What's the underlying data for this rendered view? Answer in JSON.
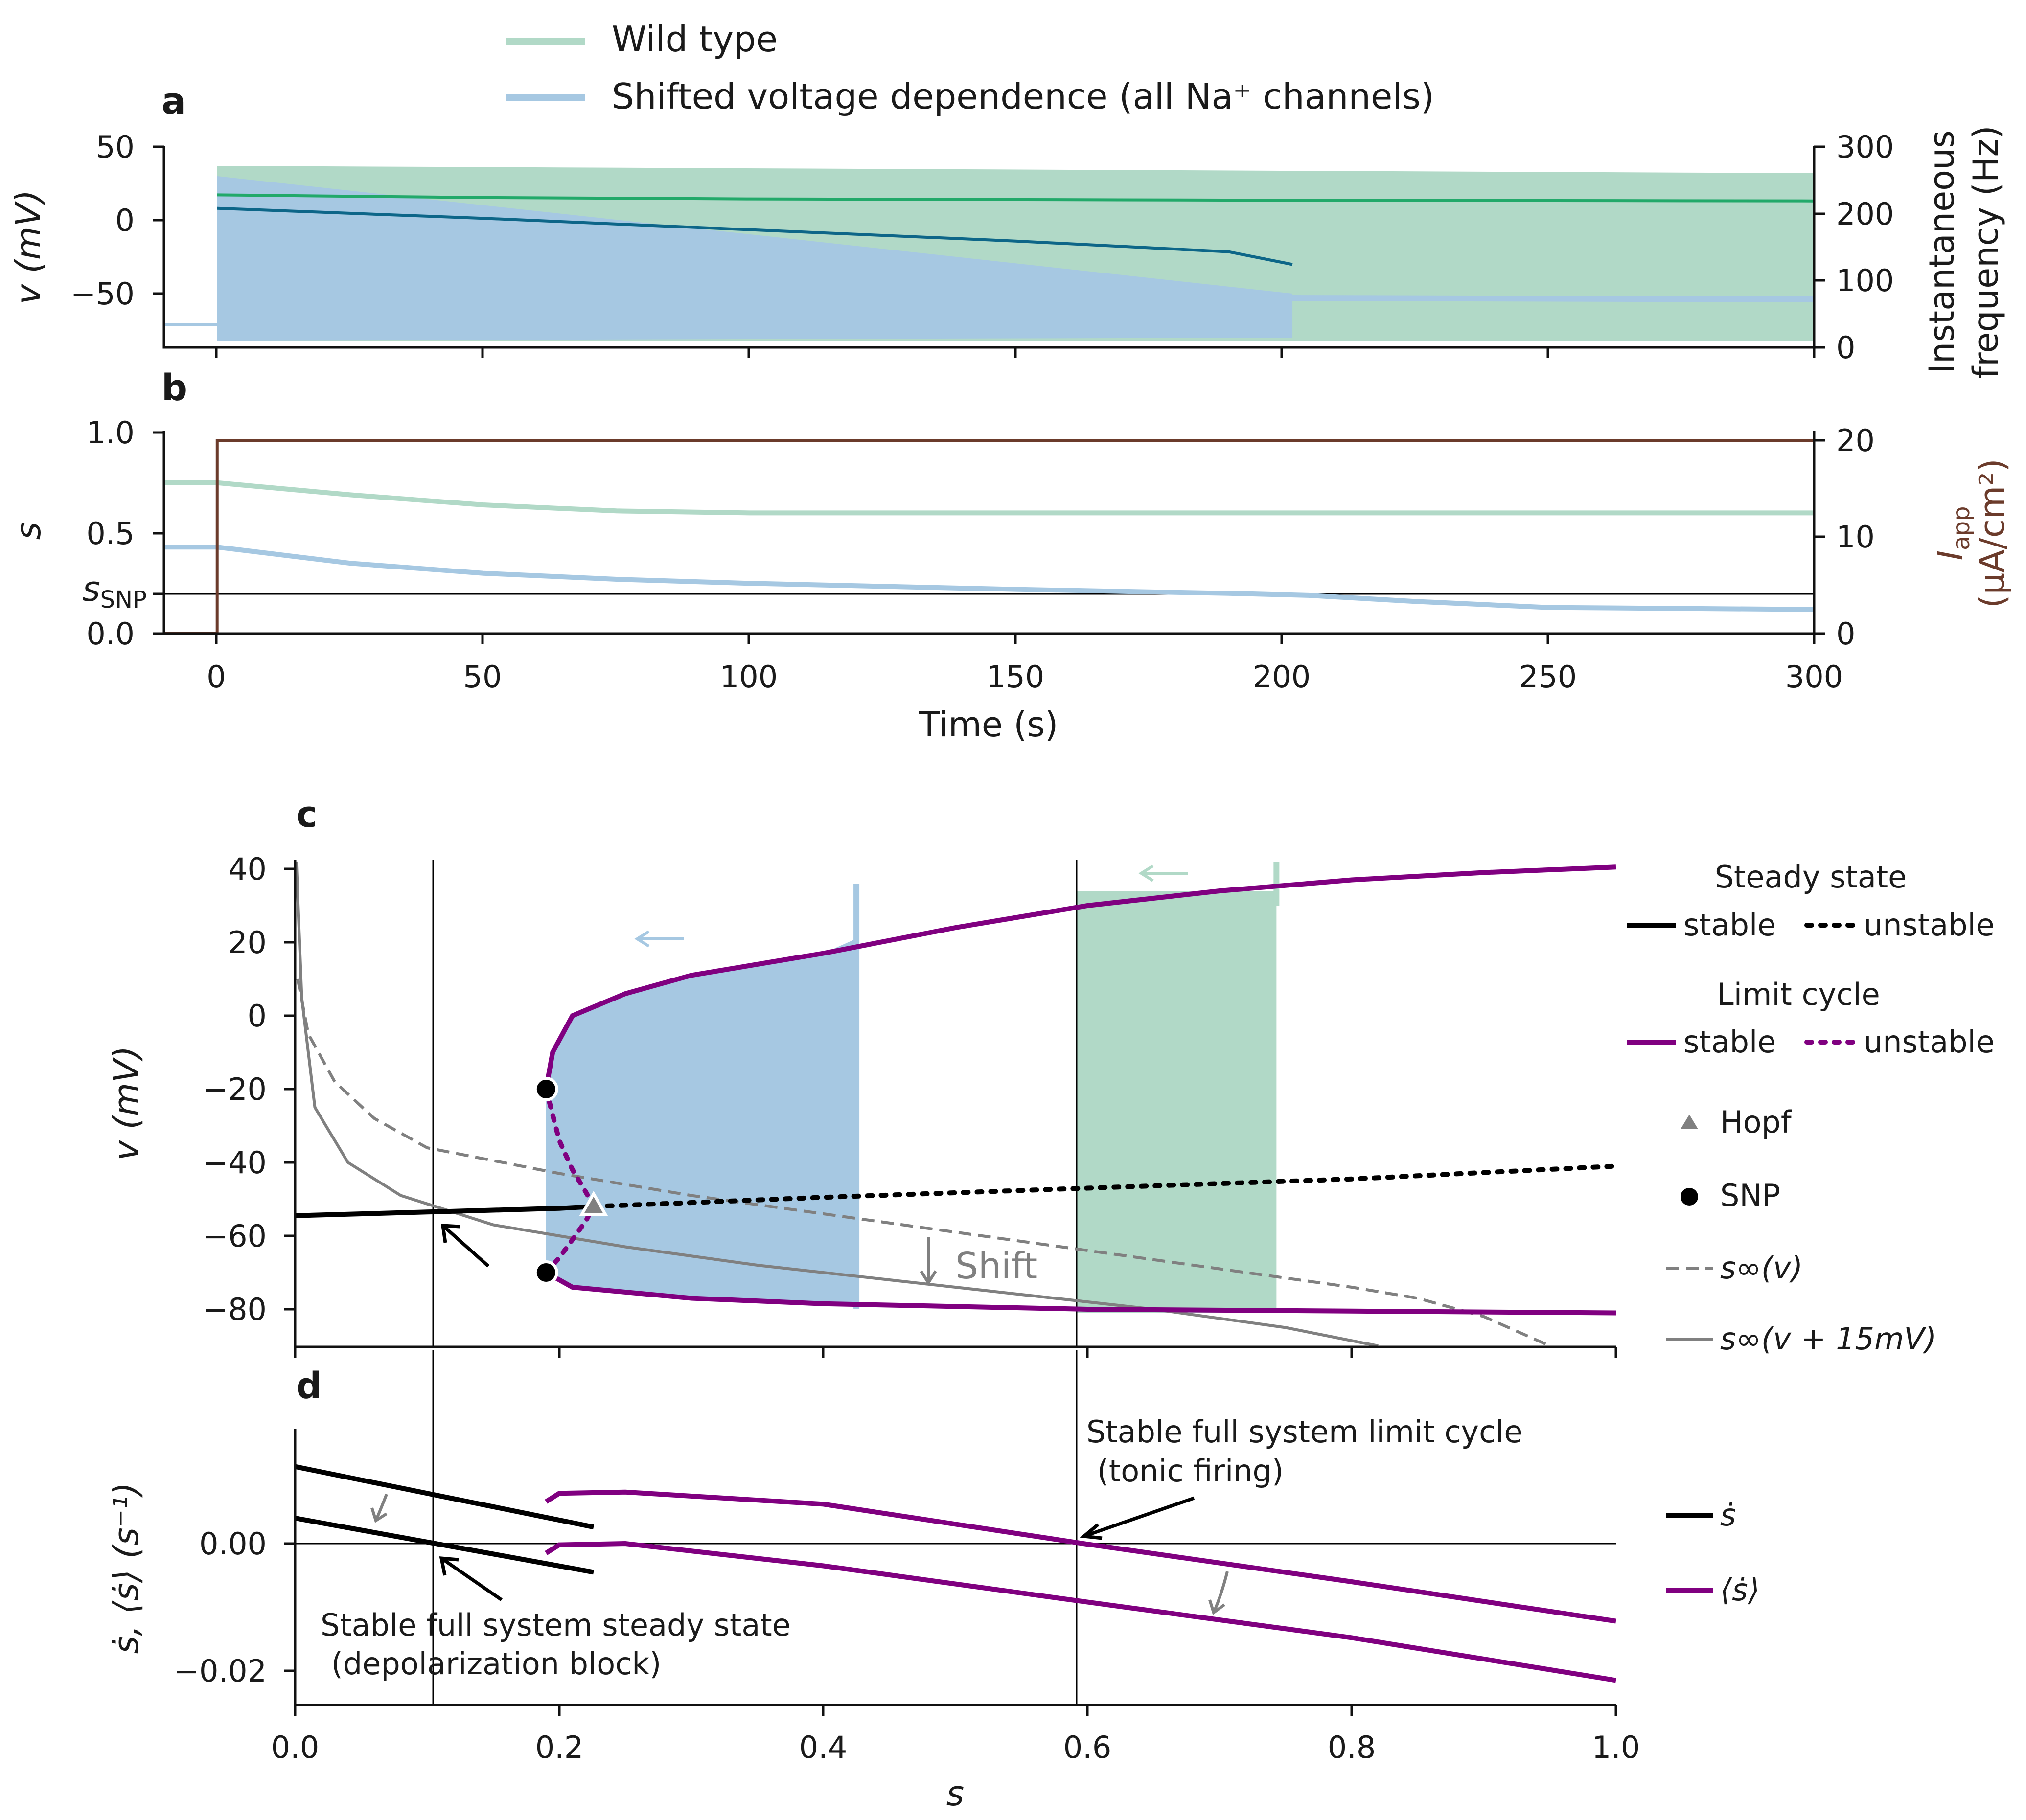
{
  "colors": {
    "wt_fill": "#b1d9c7",
    "wt_line": "#22a96a",
    "sh_fill": "#a6c8e2",
    "sh_line": "#0d6688",
    "iapp": "#6b3b2b",
    "purple": "#800080",
    "purple_light": "#9b7cc6",
    "grey": "#808080",
    "black": "#000000"
  },
  "legend_top": {
    "items": [
      {
        "label": "Wild type",
        "color": "#b1d9c7"
      },
      {
        "label": "Shifted voltage dependence (all Na⁺ channels)",
        "color": "#a6c8e2"
      }
    ]
  },
  "panels": {
    "a": "a",
    "b": "b",
    "c": "c",
    "d": "d"
  },
  "panel_a": {
    "ylabel": "v (mV)",
    "ylabel_right": [
      "Instantaneous",
      "frequency (Hz)"
    ],
    "yticks": [
      "50",
      "0",
      "−50"
    ],
    "yticks_right": [
      "300",
      "200",
      "100",
      "0"
    ]
  },
  "panel_b": {
    "ylabel": "s",
    "ylabel_right": [
      "I",
      "app",
      "(µA/cm²)"
    ],
    "yticks": [
      "1.0",
      "0.5",
      "0.0"
    ],
    "snp_label": [
      "s",
      "SNP"
    ],
    "yticks_right": [
      "20",
      "10",
      "0"
    ],
    "xticks": [
      "0",
      "50",
      "100",
      "150",
      "200",
      "250",
      "300"
    ],
    "xlabel": "Time (s)"
  },
  "panel_c": {
    "ylabel": "v (mV)",
    "yticks": [
      "40",
      "20",
      "0",
      "−20",
      "−40",
      "−60",
      "−80"
    ],
    "shift_label": "Shift",
    "legend": {
      "steady_title": "Steady state",
      "stable": "stable",
      "unstable": "unstable",
      "limit_title": "Limit cycle",
      "hopf": "Hopf",
      "snp": "SNP",
      "s_inf": "s∞(v)",
      "s_inf_shift": "s∞(v + 15mV)"
    }
  },
  "panel_d": {
    "ylabel": "ṡ, ⟨ṡ⟩ (s⁻¹)",
    "yticks": [
      "0.00",
      "−0.02"
    ],
    "xticks": [
      "0.0",
      "0.2",
      "0.4",
      "0.6",
      "0.8",
      "1.0"
    ],
    "xlabel": "s",
    "annotation_limit": [
      "Stable full system limit cycle",
      " (tonic firing)"
    ],
    "annotation_steady": [
      "Stable full system steady state",
      " (depolarization block)"
    ],
    "legend": {
      "sdot": "ṡ",
      "sdot_avg": "⟨ṡ⟩"
    }
  },
  "chart_data": [
    {
      "type": "line",
      "panel": "a",
      "xlabel": "Time (s)",
      "ylabel": "v (mV)",
      "ylabel_right": "Instantaneous frequency (Hz)",
      "xlim": [
        -10,
        300
      ],
      "ylim": [
        -88,
        50
      ],
      "ylim_right": [
        0,
        300
      ],
      "series": [
        {
          "name": "Wild type",
          "kind": "voltage envelope",
          "x": [
            -10,
            0,
            300
          ],
          "v_max": [
            -70,
            37,
            32
          ],
          "v_min": [
            -72,
            -82,
            -82
          ]
        },
        {
          "name": "Shifted voltage dependence (all Na⁺ channels)",
          "kind": "voltage envelope",
          "x": [
            -10,
            0,
            202,
            300
          ],
          "v_max": [
            -70,
            30,
            -50,
            -53
          ],
          "v_min": [
            -72,
            -82,
            -80,
            -54
          ]
        },
        {
          "name": "Wild type",
          "kind": "instantaneous frequency (Hz)",
          "x": [
            0,
            50,
            100,
            200,
            300
          ],
          "y": [
            228,
            224,
            222,
            220,
            219
          ]
        },
        {
          "name": "Shifted voltage dependence (all Na⁺ channels)",
          "kind": "instantaneous frequency (Hz)",
          "x": [
            0,
            50,
            100,
            150,
            190,
            202
          ],
          "y": [
            208,
            193,
            176,
            159,
            143,
            124
          ]
        }
      ]
    },
    {
      "type": "line",
      "panel": "b",
      "xlabel": "Time (s)",
      "ylabel": "s",
      "ylabel_right": "I_app (µA/cm²)",
      "xlim": [
        -10,
        300
      ],
      "xticks": [
        0,
        50,
        100,
        150,
        200,
        250,
        300
      ],
      "ylim": [
        0,
        1
      ],
      "ylim_right": [
        0,
        20
      ],
      "hline_s_snp": 0.2,
      "series": [
        {
          "name": "Wild type",
          "x": [
            -10,
            0,
            25,
            50,
            75,
            100,
            150,
            200,
            300
          ],
          "y": [
            0.75,
            0.75,
            0.69,
            0.64,
            0.61,
            0.6,
            0.6,
            0.6,
            0.6
          ]
        },
        {
          "name": "Shifted voltage dependence (all Na⁺ channels)",
          "x": [
            -10,
            0,
            25,
            50,
            75,
            100,
            150,
            190,
            205,
            225,
            250,
            300
          ],
          "y": [
            0.43,
            0.43,
            0.35,
            0.3,
            0.27,
            0.25,
            0.22,
            0.2,
            0.19,
            0.16,
            0.13,
            0.12
          ]
        },
        {
          "name": "I_app",
          "axis": "right",
          "x": [
            -10,
            -0.01,
            0,
            300
          ],
          "y": [
            0,
            0,
            20,
            20
          ]
        }
      ]
    },
    {
      "type": "line",
      "panel": "c",
      "xlabel": "s",
      "ylabel": "v (mV)",
      "xlim": [
        0,
        1
      ],
      "ylim": [
        -90,
        42
      ],
      "vlines_s": [
        0.105,
        0.592
      ],
      "series": [
        {
          "name": "stable steady state",
          "x": [
            0,
            0.1,
            0.2,
            0.226
          ],
          "y": [
            -54.5,
            -53.5,
            -52.5,
            -52
          ]
        },
        {
          "name": "unstable steady state",
          "x": [
            0.226,
            0.4,
            0.6,
            0.8,
            1.0
          ],
          "y": [
            -52,
            -49.5,
            -47,
            -44.5,
            -41
          ]
        },
        {
          "name": "stable limit cycle (max)",
          "x": [
            0.19,
            0.195,
            0.21,
            0.25,
            0.3,
            0.4,
            0.5,
            0.6,
            0.7,
            0.8,
            0.9,
            1.0
          ],
          "y": [
            -20,
            -10,
            0,
            6,
            11,
            17,
            24,
            30,
            34,
            37,
            39,
            40.5
          ]
        },
        {
          "name": "unstable limit cycle",
          "x": [
            0.19,
            0.2,
            0.21,
            0.22,
            0.226,
            0.22,
            0.21,
            0.2,
            0.19
          ],
          "y": [
            -20,
            -34,
            -42,
            -48,
            -52,
            -56,
            -61,
            -66,
            -70
          ]
        },
        {
          "name": "stable limit cycle (min)",
          "x": [
            0.19,
            0.21,
            0.3,
            0.4,
            0.6,
            0.8,
            1.0
          ],
          "y": [
            -70,
            -74,
            -77,
            -78.5,
            -80,
            -80.5,
            -81
          ]
        },
        {
          "name": "s∞(v)",
          "x": [
            0.002,
            0.01,
            0.03,
            0.06,
            0.1,
            0.2,
            0.3,
            0.4,
            0.5,
            0.6,
            0.7,
            0.8,
            0.85,
            0.9,
            0.95
          ],
          "y": [
            10,
            -5,
            -18,
            -28,
            -36,
            -43,
            -49,
            -54,
            -59,
            -64,
            -69,
            -74,
            -77,
            -82,
            -90
          ]
        },
        {
          "name": "s∞(v + 15mV)",
          "x": [
            0.001,
            0.005,
            0.015,
            0.04,
            0.08,
            0.15,
            0.25,
            0.35,
            0.45,
            0.55,
            0.65,
            0.75,
            0.82
          ],
          "y": [
            42,
            5,
            -25,
            -40,
            -49,
            -57,
            -63,
            -68,
            -72,
            -76,
            -80,
            -85,
            -90
          ]
        }
      ],
      "markers": [
        {
          "type": "SNP",
          "s": 0.19,
          "v": -20
        },
        {
          "type": "SNP",
          "s": 0.19,
          "v": -70
        },
        {
          "type": "Hopf",
          "s": 0.226,
          "v": -52
        }
      ],
      "trajectories": [
        {
          "name": "Shifted voltage dependence (all Na⁺ channels)",
          "s_range": [
            0.19,
            0.425
          ],
          "v_range": [
            -80,
            36
          ]
        },
        {
          "name": "Wild type",
          "s_range": [
            0.592,
            0.743
          ],
          "v_range": [
            -81,
            42
          ]
        }
      ]
    },
    {
      "type": "line",
      "panel": "d",
      "xlabel": "s",
      "ylabel": "ṡ, ⟨ṡ⟩ (s⁻¹)",
      "xlim": [
        0,
        1
      ],
      "xticks": [
        0,
        0.2,
        0.4,
        0.6,
        0.8,
        1.0
      ],
      "ylim": [
        -0.025,
        0.018
      ],
      "yticks": [
        0,
        -0.02
      ],
      "series": [
        {
          "name": "ṡ (wild type)",
          "x": [
            0,
            0.226
          ],
          "y": [
            0.0121,
            0.0026
          ]
        },
        {
          "name": "ṡ (shifted)",
          "x": [
            0,
            0.226
          ],
          "y": [
            0.004,
            -0.0045
          ]
        },
        {
          "name": "⟨ṡ⟩ (wild type)",
          "x": [
            0.19,
            0.2,
            0.25,
            0.4,
            0.6,
            0.8,
            1.0
          ],
          "y": [
            0.0066,
            0.0079,
            0.0081,
            0.0062,
            -0.0001,
            -0.006,
            -0.0122
          ]
        },
        {
          "name": "⟨ṡ⟩ (shifted)",
          "x": [
            0.19,
            0.2,
            0.25,
            0.4,
            0.6,
            0.8,
            1.0
          ],
          "y": [
            -0.0015,
            -0.0002,
            0.0,
            -0.0035,
            -0.0092,
            -0.0148,
            -0.0215
          ]
        }
      ],
      "annotations": [
        {
          "text": "Stable full system limit cycle (tonic firing)",
          "s": 0.592,
          "y": 0.0
        },
        {
          "text": "Stable full system steady state (depolarization block)",
          "s": 0.11,
          "y": 0.0
        }
      ]
    }
  ]
}
